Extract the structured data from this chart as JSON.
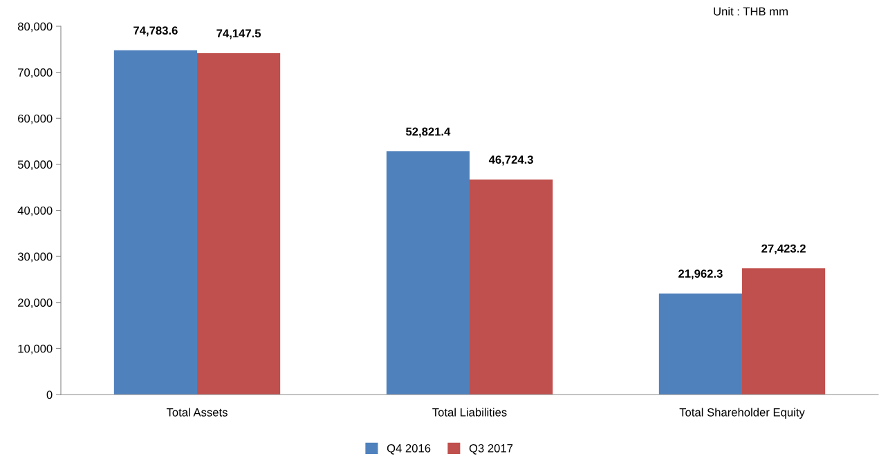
{
  "chart_data": {
    "type": "bar",
    "categories": [
      "Total Assets",
      "Total Liabilities",
      "Total Shareholder Equity"
    ],
    "series": [
      {
        "name": "Q4 2016",
        "color": "#4f81bd",
        "values": [
          74783.6,
          52821.4,
          21962.3
        ]
      },
      {
        "name": "Q3 2017",
        "color": "#c0504d",
        "values": [
          74147.5,
          46724.3,
          27423.2
        ]
      }
    ],
    "ylim": [
      0,
      80000
    ],
    "yticks": [
      {
        "value": 0,
        "label": "0"
      },
      {
        "value": 10000,
        "label": "10,000"
      },
      {
        "value": 20000,
        "label": "20,000"
      },
      {
        "value": 30000,
        "label": "30,000"
      },
      {
        "value": 40000,
        "label": "40,000"
      },
      {
        "value": 50000,
        "label": "50,000"
      },
      {
        "value": 60000,
        "label": "60,000"
      },
      {
        "value": 70000,
        "label": "70,000"
      },
      {
        "value": 80000,
        "label": "80,000"
      }
    ],
    "value_labels": [
      [
        "74,783.6",
        "52,821.4",
        "21,962.3"
      ],
      [
        "74,147.5",
        "46,724.3",
        "27,423.2"
      ]
    ],
    "annotations": [
      "Unit : THB mm"
    ],
    "legend": "bottom",
    "grid": false
  }
}
